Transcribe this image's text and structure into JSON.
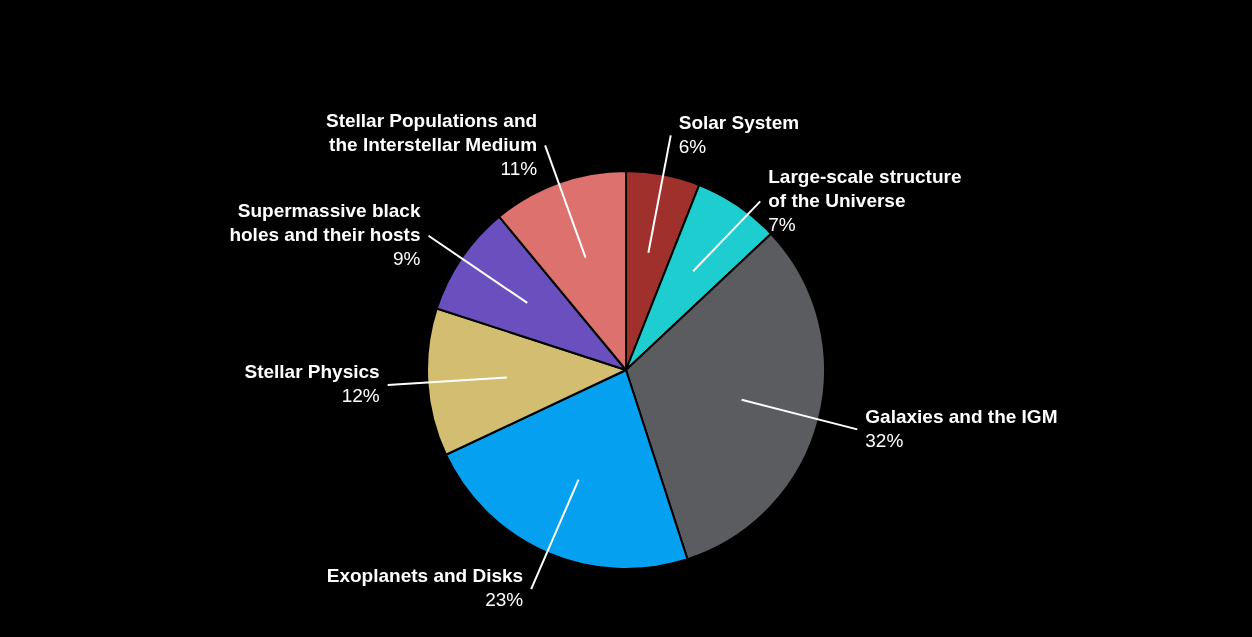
{
  "chart_data": {
    "type": "pie",
    "categories": [
      "Solar System",
      "Large-scale structure\nof the Universe",
      "Galaxies and the IGM",
      "Exoplanets and Disks",
      "Stellar Physics",
      "Supermassive black\nholes and their hosts",
      "Stellar Populations and\nthe Interstellar Medium"
    ],
    "values": [
      6,
      7,
      32,
      23,
      12,
      9,
      11
    ],
    "value_labels": [
      "6%",
      "7%",
      "32%",
      "23%",
      "12%",
      "9%",
      "11%"
    ],
    "colors": [
      "#a0302c",
      "#1ecdd0",
      "#5a5c60",
      "#05a0ef",
      "#d3bd70",
      "#6a4fbf",
      "#dd716e"
    ],
    "legend": false
  }
}
